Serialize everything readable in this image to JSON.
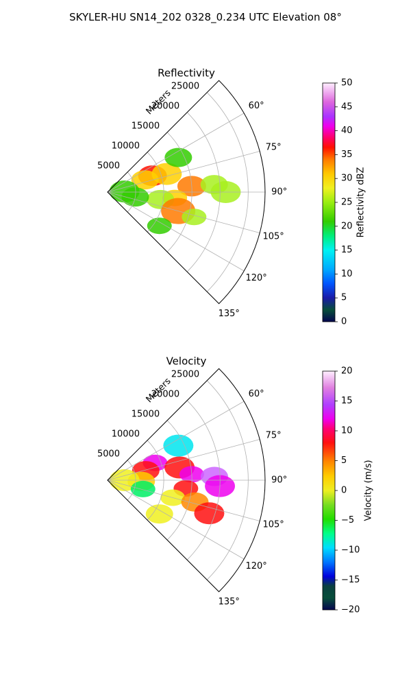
{
  "figure": {
    "title": "SKYLER-HU  SN14_202  0328_0.234 UTC Elevation 08°"
  },
  "chart_data": [
    {
      "type": "polar-sector-radar",
      "title": "Reflectivity",
      "field": "reflectivity",
      "radial_axis_label": "Meters",
      "radial_ticks": [
        5000,
        10000,
        15000,
        20000,
        25000
      ],
      "radial_max": 28000,
      "angle_range_deg": [
        45,
        135
      ],
      "angle_ticks": [
        "60°",
        "75°",
        "90°",
        "105°",
        "120°",
        "135°"
      ],
      "angle_tick_values": [
        60,
        75,
        90,
        105,
        120,
        135
      ],
      "grid": true,
      "colorbar": {
        "label": "Reflectivity dBZ",
        "min": 0,
        "max": 50,
        "ticks": [
          "0",
          "5",
          "10",
          "15",
          "20",
          "25",
          "30",
          "35",
          "40",
          "45",
          "50"
        ]
      },
      "echo_cells": [
        {
          "range": 8500,
          "az": 70,
          "value": 36
        },
        {
          "range": 7000,
          "az": 72,
          "value": 30
        },
        {
          "range": 11000,
          "az": 73,
          "value": 28
        },
        {
          "range": 15000,
          "az": 86,
          "value": 34
        },
        {
          "range": 19000,
          "az": 86,
          "value": 22
        },
        {
          "range": 21000,
          "az": 90,
          "value": 25
        },
        {
          "range": 12000,
          "az": 95,
          "value": 30
        },
        {
          "range": 9500,
          "az": 98,
          "value": 22
        },
        {
          "range": 13000,
          "az": 105,
          "value": 32
        },
        {
          "range": 16000,
          "az": 106,
          "value": 22
        },
        {
          "range": 5000,
          "az": 100,
          "value": 18
        },
        {
          "range": 3000,
          "az": 88,
          "value": 16
        },
        {
          "range": 11000,
          "az": 123,
          "value": 20
        },
        {
          "range": 14000,
          "az": 64,
          "value": 18
        }
      ]
    },
    {
      "type": "polar-sector-radar",
      "title": "Velocity",
      "field": "velocity",
      "radial_axis_label": "Meters",
      "radial_ticks": [
        5000,
        10000,
        15000,
        20000,
        25000
      ],
      "radial_max": 28000,
      "angle_range_deg": [
        45,
        135
      ],
      "angle_ticks": [
        "60°",
        "75°",
        "90°",
        "105°",
        "120°",
        "135°"
      ],
      "angle_tick_values": [
        60,
        75,
        90,
        105,
        120,
        135
      ],
      "grid": true,
      "colorbar": {
        "label": "Velocity (m/s)",
        "min": -20,
        "max": 20,
        "ticks": [
          "−20",
          "−15",
          "−10",
          "−5",
          "0",
          "5",
          "10",
          "15",
          "20"
        ]
      },
      "echo_cells": [
        {
          "range": 9000,
          "az": 70,
          "value": 14
        },
        {
          "range": 7000,
          "az": 76,
          "value": 10
        },
        {
          "range": 13000,
          "az": 80,
          "value": 11
        },
        {
          "range": 15000,
          "az": 86,
          "value": 14
        },
        {
          "range": 19000,
          "az": 88,
          "value": 16
        },
        {
          "range": 20000,
          "az": 93,
          "value": 14
        },
        {
          "range": 14000,
          "az": 96,
          "value": 11
        },
        {
          "range": 6000,
          "az": 92,
          "value": 2
        },
        {
          "range": 3000,
          "az": 90,
          "value": 0
        },
        {
          "range": 12000,
          "az": 105,
          "value": 1
        },
        {
          "range": 16000,
          "az": 104,
          "value": 8
        },
        {
          "range": 19000,
          "az": 108,
          "value": 11
        },
        {
          "range": 6500,
          "az": 104,
          "value": -8
        },
        {
          "range": 11000,
          "az": 123,
          "value": -2
        },
        {
          "range": 14000,
          "az": 64,
          "value": -10
        }
      ]
    }
  ]
}
